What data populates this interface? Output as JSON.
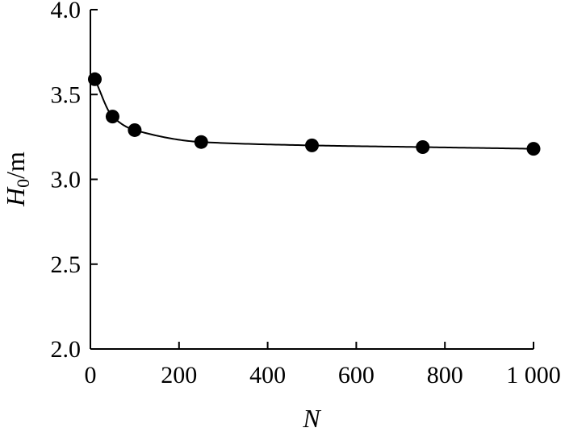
{
  "chart_data": {
    "type": "scatter",
    "x": [
      10,
      50,
      100,
      250,
      500,
      750,
      1000
    ],
    "y": [
      3.59,
      3.37,
      3.29,
      3.22,
      3.2,
      3.19,
      3.18
    ],
    "fit_curve": true,
    "xlim": [
      0,
      1000
    ],
    "ylim": [
      2.0,
      4.0
    ],
    "x_ticks": [
      0,
      200,
      400,
      600,
      800,
      1000
    ],
    "x_tick_labels": [
      "0",
      "200",
      "400",
      "600",
      "800",
      "1 000"
    ],
    "y_ticks": [
      2.0,
      2.5,
      3.0,
      3.5,
      4.0
    ],
    "y_tick_labels": [
      "2.0",
      "2.5",
      "3.0",
      "3.5",
      "4.0"
    ],
    "xlabel": "N",
    "ylabel_main": "H",
    "ylabel_sub": "0",
    "ylabel_unit": "/m",
    "grid": false,
    "colors": {
      "marker": "#000000",
      "line": "#000000"
    }
  }
}
